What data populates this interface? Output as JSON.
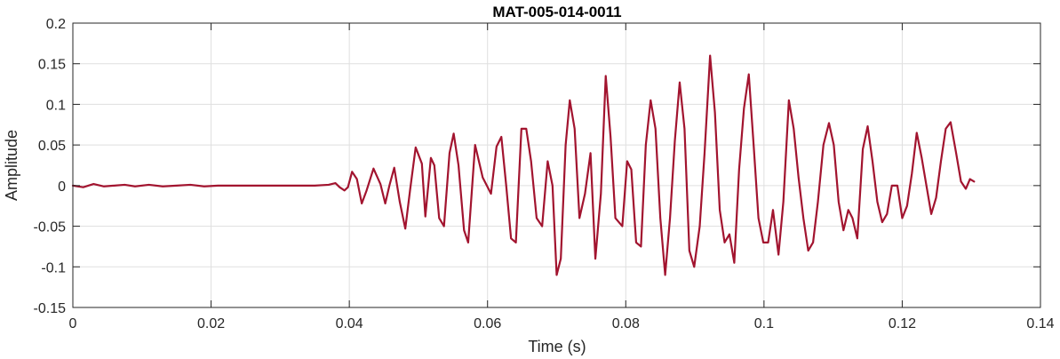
{
  "chart_data": {
    "type": "line",
    "title": "MAT-005-014-0011",
    "xlabel": "Time (s)",
    "ylabel": "Amplitude",
    "xlim": [
      0,
      0.14
    ],
    "ylim": [
      -0.15,
      0.2
    ],
    "grid": true,
    "xticks": [
      0,
      0.02,
      0.04,
      0.06,
      0.08,
      0.1,
      0.12,
      0.14
    ],
    "xtick_labels": [
      "0",
      "0.02",
      "0.04",
      "0.06",
      "0.08",
      "0.1",
      "0.12",
      "0.14"
    ],
    "yticks": [
      -0.15,
      -0.1,
      -0.05,
      0,
      0.05,
      0.1,
      0.15,
      0.2
    ],
    "ytick_labels": [
      "-0.15",
      "-0.1",
      "-0.05",
      "0",
      "0.05",
      "0.1",
      "0.15",
      "0.2"
    ],
    "series": [
      {
        "color": "#a2142f",
        "points": [
          [
            0.0,
            0.0
          ],
          [
            0.0015,
            -0.002
          ],
          [
            0.003,
            0.002
          ],
          [
            0.0045,
            -0.001
          ],
          [
            0.006,
            0.0
          ],
          [
            0.0075,
            0.001
          ],
          [
            0.009,
            -0.001
          ],
          [
            0.011,
            0.001
          ],
          [
            0.013,
            -0.001
          ],
          [
            0.015,
            0.0
          ],
          [
            0.017,
            0.001
          ],
          [
            0.019,
            -0.001
          ],
          [
            0.021,
            0.0
          ],
          [
            0.023,
            0.0
          ],
          [
            0.025,
            0.0
          ],
          [
            0.027,
            0.0
          ],
          [
            0.029,
            0.0
          ],
          [
            0.031,
            0.0
          ],
          [
            0.033,
            0.0
          ],
          [
            0.035,
            0.0
          ],
          [
            0.037,
            0.001
          ],
          [
            0.038,
            0.003
          ],
          [
            0.0386,
            -0.002
          ],
          [
            0.0393,
            -0.006
          ],
          [
            0.0398,
            -0.002
          ],
          [
            0.0404,
            0.017
          ],
          [
            0.0411,
            0.008
          ],
          [
            0.0418,
            -0.022
          ],
          [
            0.0425,
            -0.006
          ],
          [
            0.0435,
            0.021
          ],
          [
            0.0445,
            0.002
          ],
          [
            0.0452,
            -0.022
          ],
          [
            0.0458,
            0.0
          ],
          [
            0.0465,
            0.022
          ],
          [
            0.0473,
            -0.02
          ],
          [
            0.0481,
            -0.053
          ],
          [
            0.0488,
            -0.005
          ],
          [
            0.0496,
            0.047
          ],
          [
            0.0505,
            0.027
          ],
          [
            0.051,
            -0.038
          ],
          [
            0.0518,
            0.034
          ],
          [
            0.0523,
            0.025
          ],
          [
            0.053,
            -0.04
          ],
          [
            0.0537,
            -0.05
          ],
          [
            0.0545,
            0.04
          ],
          [
            0.0551,
            0.064
          ],
          [
            0.0558,
            0.025
          ],
          [
            0.0566,
            -0.055
          ],
          [
            0.0572,
            -0.07
          ],
          [
            0.0582,
            0.05
          ],
          [
            0.0593,
            0.01
          ],
          [
            0.0605,
            -0.01
          ],
          [
            0.0613,
            0.048
          ],
          [
            0.062,
            0.06
          ],
          [
            0.0627,
            0.0
          ],
          [
            0.0634,
            -0.065
          ],
          [
            0.0641,
            -0.07
          ],
          [
            0.0649,
            0.07
          ],
          [
            0.0656,
            0.07
          ],
          [
            0.0663,
            0.03
          ],
          [
            0.0671,
            -0.04
          ],
          [
            0.0679,
            -0.05
          ],
          [
            0.0687,
            0.03
          ],
          [
            0.0694,
            0.0
          ],
          [
            0.07,
            -0.11
          ],
          [
            0.0706,
            -0.09
          ],
          [
            0.0713,
            0.05
          ],
          [
            0.0719,
            0.105
          ],
          [
            0.0726,
            0.07
          ],
          [
            0.0733,
            -0.04
          ],
          [
            0.0741,
            -0.01
          ],
          [
            0.0749,
            0.04
          ],
          [
            0.0756,
            -0.09
          ],
          [
            0.0764,
            -0.01
          ],
          [
            0.0771,
            0.135
          ],
          [
            0.0778,
            0.06
          ],
          [
            0.0785,
            -0.04
          ],
          [
            0.0795,
            -0.05
          ],
          [
            0.0802,
            0.03
          ],
          [
            0.0808,
            0.02
          ],
          [
            0.0815,
            -0.07
          ],
          [
            0.0822,
            -0.075
          ],
          [
            0.0829,
            0.05
          ],
          [
            0.0836,
            0.105
          ],
          [
            0.0843,
            0.07
          ],
          [
            0.085,
            -0.04
          ],
          [
            0.0857,
            -0.11
          ],
          [
            0.0864,
            -0.04
          ],
          [
            0.0871,
            0.055
          ],
          [
            0.0878,
            0.127
          ],
          [
            0.0885,
            0.07
          ],
          [
            0.0892,
            -0.08
          ],
          [
            0.0899,
            -0.1
          ],
          [
            0.0907,
            -0.05
          ],
          [
            0.0914,
            0.04
          ],
          [
            0.0922,
            0.16
          ],
          [
            0.0929,
            0.09
          ],
          [
            0.0936,
            -0.03
          ],
          [
            0.0943,
            -0.07
          ],
          [
            0.095,
            -0.06
          ],
          [
            0.0957,
            -0.095
          ],
          [
            0.0964,
            0.02
          ],
          [
            0.0971,
            0.095
          ],
          [
            0.0978,
            0.137
          ],
          [
            0.0985,
            0.05
          ],
          [
            0.0992,
            -0.04
          ],
          [
            0.0999,
            -0.07
          ],
          [
            0.1006,
            -0.07
          ],
          [
            0.1013,
            -0.03
          ],
          [
            0.1021,
            -0.085
          ],
          [
            0.1028,
            -0.02
          ],
          [
            0.1036,
            0.105
          ],
          [
            0.1043,
            0.07
          ],
          [
            0.105,
            0.01
          ],
          [
            0.1057,
            -0.04
          ],
          [
            0.1064,
            -0.08
          ],
          [
            0.1071,
            -0.07
          ],
          [
            0.1078,
            -0.02
          ],
          [
            0.1086,
            0.05
          ],
          [
            0.1094,
            0.077
          ],
          [
            0.1101,
            0.05
          ],
          [
            0.1108,
            -0.02
          ],
          [
            0.1115,
            -0.055
          ],
          [
            0.1122,
            -0.03
          ],
          [
            0.1128,
            -0.04
          ],
          [
            0.1135,
            -0.065
          ],
          [
            0.1143,
            0.045
          ],
          [
            0.115,
            0.073
          ],
          [
            0.1157,
            0.03
          ],
          [
            0.1164,
            -0.02
          ],
          [
            0.1171,
            -0.045
          ],
          [
            0.1178,
            -0.035
          ],
          [
            0.1185,
            0.0
          ],
          [
            0.1193,
            0.0
          ],
          [
            0.12,
            -0.04
          ],
          [
            0.1207,
            -0.025
          ],
          [
            0.1214,
            0.015
          ],
          [
            0.1221,
            0.065
          ],
          [
            0.1228,
            0.035
          ],
          [
            0.1235,
            0.0
          ],
          [
            0.1242,
            -0.035
          ],
          [
            0.1249,
            -0.015
          ],
          [
            0.1256,
            0.03
          ],
          [
            0.1263,
            0.07
          ],
          [
            0.127,
            0.078
          ],
          [
            0.1278,
            0.04
          ],
          [
            0.1285,
            0.005
          ],
          [
            0.1292,
            -0.004
          ],
          [
            0.1298,
            0.008
          ],
          [
            0.1304,
            0.005
          ]
        ]
      }
    ]
  }
}
